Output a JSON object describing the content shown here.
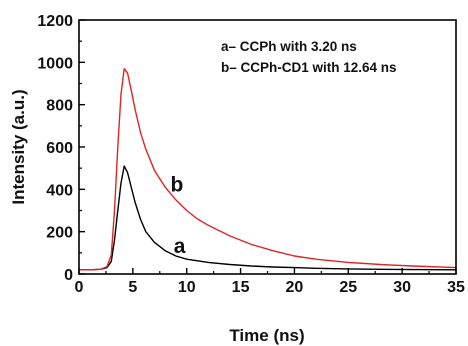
{
  "chart_data": {
    "type": "line",
    "xlabel": "Time (ns)",
    "ylabel": "Intensity (a.u.)",
    "xlim": [
      0,
      35
    ],
    "ylim": [
      0,
      1200
    ],
    "x_ticks": [
      0,
      5,
      10,
      15,
      20,
      25,
      30,
      35
    ],
    "y_ticks": [
      0,
      200,
      400,
      600,
      800,
      1000,
      1200
    ],
    "grid": false,
    "legend_placement": "top-right",
    "legend": [
      "a– CCPh with 3.20 ns",
      "b– CCPh-CD1 with 12.64 ns"
    ],
    "series": [
      {
        "name": "a",
        "color": "#000000",
        "x": [
          0,
          1,
          2,
          2.6,
          3,
          3.3,
          3.6,
          3.9,
          4.2,
          4.5,
          4.8,
          5.2,
          5.7,
          6.2,
          7,
          8,
          9,
          10,
          12,
          14,
          16,
          18,
          20,
          22,
          25,
          28,
          31,
          35
        ],
        "y": [
          20,
          20,
          22,
          30,
          60,
          160,
          300,
          430,
          510,
          480,
          420,
          340,
          260,
          200,
          150,
          110,
          85,
          70,
          55,
          45,
          38,
          33,
          30,
          27,
          24,
          22,
          21,
          20
        ]
      },
      {
        "name": "b",
        "color": "#e02424",
        "x": [
          0,
          1,
          2,
          2.6,
          3,
          3.3,
          3.6,
          3.9,
          4.2,
          4.5,
          4.8,
          5.2,
          5.7,
          6.2,
          7,
          8,
          9,
          10,
          11,
          12,
          14,
          16,
          18,
          20,
          22,
          25,
          28,
          31,
          35
        ],
        "y": [
          20,
          20,
          22,
          35,
          90,
          300,
          600,
          850,
          970,
          950,
          880,
          780,
          670,
          590,
          490,
          410,
          350,
          300,
          260,
          230,
          180,
          140,
          110,
          85,
          70,
          55,
          45,
          38,
          30
        ]
      }
    ],
    "annotations": [
      {
        "text": "a",
        "x": 8.8,
        "y": 100
      },
      {
        "text": "b",
        "x": 8.5,
        "y": 390
      }
    ]
  }
}
